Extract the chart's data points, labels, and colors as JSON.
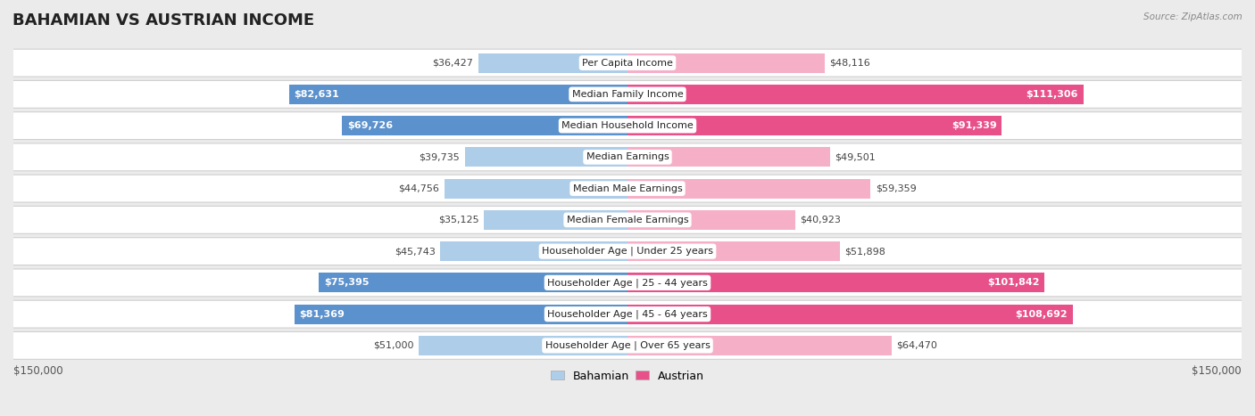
{
  "title": "BAHAMIAN VS AUSTRIAN INCOME",
  "source": "Source: ZipAtlas.com",
  "categories": [
    "Per Capita Income",
    "Median Family Income",
    "Median Household Income",
    "Median Earnings",
    "Median Male Earnings",
    "Median Female Earnings",
    "Householder Age | Under 25 years",
    "Householder Age | 25 - 44 years",
    "Householder Age | 45 - 64 years",
    "Householder Age | Over 65 years"
  ],
  "bahamian": [
    36427,
    82631,
    69726,
    39735,
    44756,
    35125,
    45743,
    75395,
    81369,
    51000
  ],
  "austrian": [
    48116,
    111306,
    91339,
    49501,
    59359,
    40923,
    51898,
    101842,
    108692,
    64470
  ],
  "max_val": 150000,
  "bahamian_color_light": "#aecde8",
  "bahamian_color_dark": "#5b91cc",
  "austrian_color_light": "#f5b0c8",
  "austrian_color_dark": "#e8508a",
  "bg_color": "#ebebeb",
  "row_bg": "#ffffff",
  "bar_height": 0.62,
  "label_threshold": 65000,
  "xlabel_left": "$150,000",
  "xlabel_right": "$150,000",
  "title_fontsize": 13,
  "value_fontsize": 8,
  "cat_fontsize": 8
}
